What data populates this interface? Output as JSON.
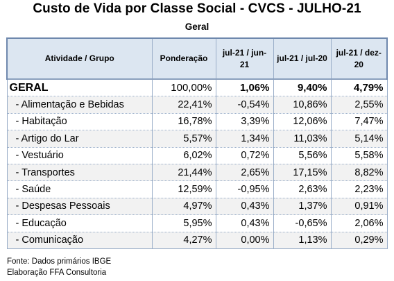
{
  "title": "Custo de Vida por Classe Social - CVCS - JULHO-21",
  "subtitle": "Geral",
  "table": {
    "headers": [
      "Atividade / Grupo",
      "Ponderação",
      "jul-21  /  jun-21",
      "jul-21  /  jul-20",
      "jul-21  /  dez-20"
    ],
    "rows": [
      {
        "name": "GERAL",
        "pond": "100,00%",
        "v1": "1,06%",
        "v2": "9,40%",
        "v3": "4,79%"
      },
      {
        "name": " - Alimentação e Bebidas",
        "pond": "22,41%",
        "v1": "-0,54%",
        "v2": "10,86%",
        "v3": "2,55%"
      },
      {
        "name": " - Habitação",
        "pond": "16,78%",
        "v1": "3,39%",
        "v2": "12,06%",
        "v3": "7,47%"
      },
      {
        "name": " - Artigo do Lar",
        "pond": "5,57%",
        "v1": "1,34%",
        "v2": "11,03%",
        "v3": "5,14%"
      },
      {
        "name": " - Vestuário",
        "pond": "6,02%",
        "v1": "0,72%",
        "v2": "5,56%",
        "v3": "5,58%"
      },
      {
        "name": " - Transportes",
        "pond": "21,44%",
        "v1": "2,65%",
        "v2": "17,15%",
        "v3": "8,82%"
      },
      {
        "name": " - Saúde",
        "pond": "12,59%",
        "v1": "-0,95%",
        "v2": "2,63%",
        "v3": "2,23%"
      },
      {
        "name": " - Despesas Pessoais",
        "pond": "4,97%",
        "v1": "0,43%",
        "v2": "1,37%",
        "v3": "0,91%"
      },
      {
        "name": " - Educação",
        "pond": "5,95%",
        "v1": "0,43%",
        "v2": "-0,65%",
        "v3": "2,06%"
      },
      {
        "name": " - Comunicação",
        "pond": "4,27%",
        "v1": "0,00%",
        "v2": "1,13%",
        "v3": "0,29%"
      }
    ]
  },
  "footer": {
    "source": "Fonte: Dados primários IBGE",
    "credit": "Elaboração FFA Consultoria"
  }
}
